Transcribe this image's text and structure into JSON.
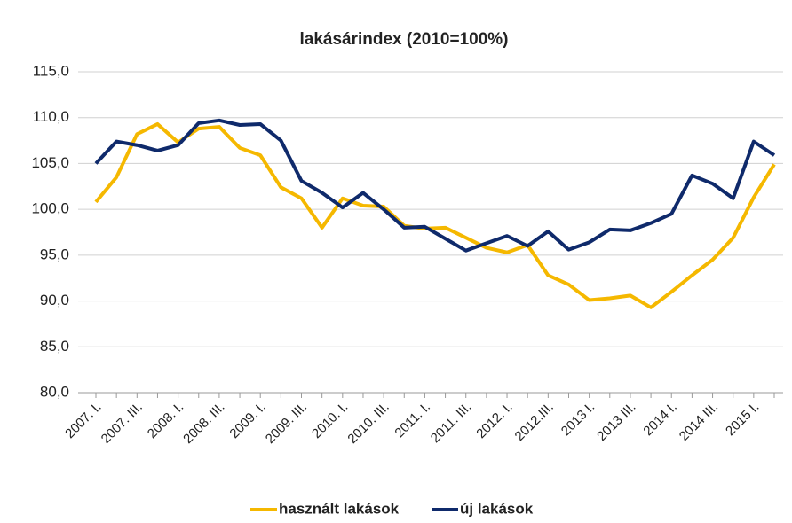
{
  "chart_data": {
    "type": "line",
    "title": "lakásárindex (2010=100%)",
    "categories": [
      "2007. I.",
      null,
      "2007. III.",
      null,
      "2008. I.",
      null,
      "2008. III.",
      null,
      "2009. I.",
      null,
      "2009. III.",
      null,
      "2010. I.",
      null,
      "2010. III.",
      null,
      "2011. I.",
      null,
      "2011. III.",
      null,
      "2012. I.",
      null,
      "2012.III.",
      null,
      "2013 I.",
      null,
      "2013 III.",
      null,
      "2014 I.",
      null,
      "2014 III.",
      null,
      "2015 I.",
      null
    ],
    "series": [
      {
        "name": "használt lakások",
        "color": "#f5b800",
        "values": [
          100.8,
          103.5,
          108.2,
          109.3,
          107.3,
          108.8,
          109.0,
          106.7,
          105.9,
          102.4,
          101.2,
          98.0,
          101.2,
          100.4,
          100.3,
          98.2,
          97.9,
          98.0,
          96.9,
          95.8,
          95.3,
          96.1,
          92.8,
          91.8,
          90.1,
          90.3,
          90.6,
          89.3,
          91.0,
          92.8,
          94.5,
          96.9,
          101.3,
          104.9
        ]
      },
      {
        "name": "új lakások",
        "color": "#0f2a6b",
        "values": [
          105.0,
          107.4,
          107.0,
          106.4,
          107.0,
          109.4,
          109.7,
          109.2,
          109.3,
          107.5,
          103.1,
          101.8,
          100.2,
          101.8,
          100.0,
          98.0,
          98.1,
          96.8,
          95.5,
          96.3,
          97.1,
          96.0,
          97.6,
          95.6,
          96.4,
          97.8,
          97.7,
          98.5,
          99.5,
          103.7,
          102.8,
          101.2,
          107.4,
          105.9
        ]
      }
    ],
    "ylim": [
      80,
      115
    ],
    "yticks": [
      {
        "value": 80,
        "label": "80,0"
      },
      {
        "value": 85,
        "label": "85,0"
      },
      {
        "value": 90,
        "label": "90,0"
      },
      {
        "value": 95,
        "label": "95,0"
      },
      {
        "value": 100,
        "label": "100,0"
      },
      {
        "value": 105,
        "label": "105,0"
      },
      {
        "value": 110,
        "label": "110,0"
      },
      {
        "value": 115,
        "label": "115,0"
      }
    ],
    "grid": true,
    "legend": "bottom"
  }
}
